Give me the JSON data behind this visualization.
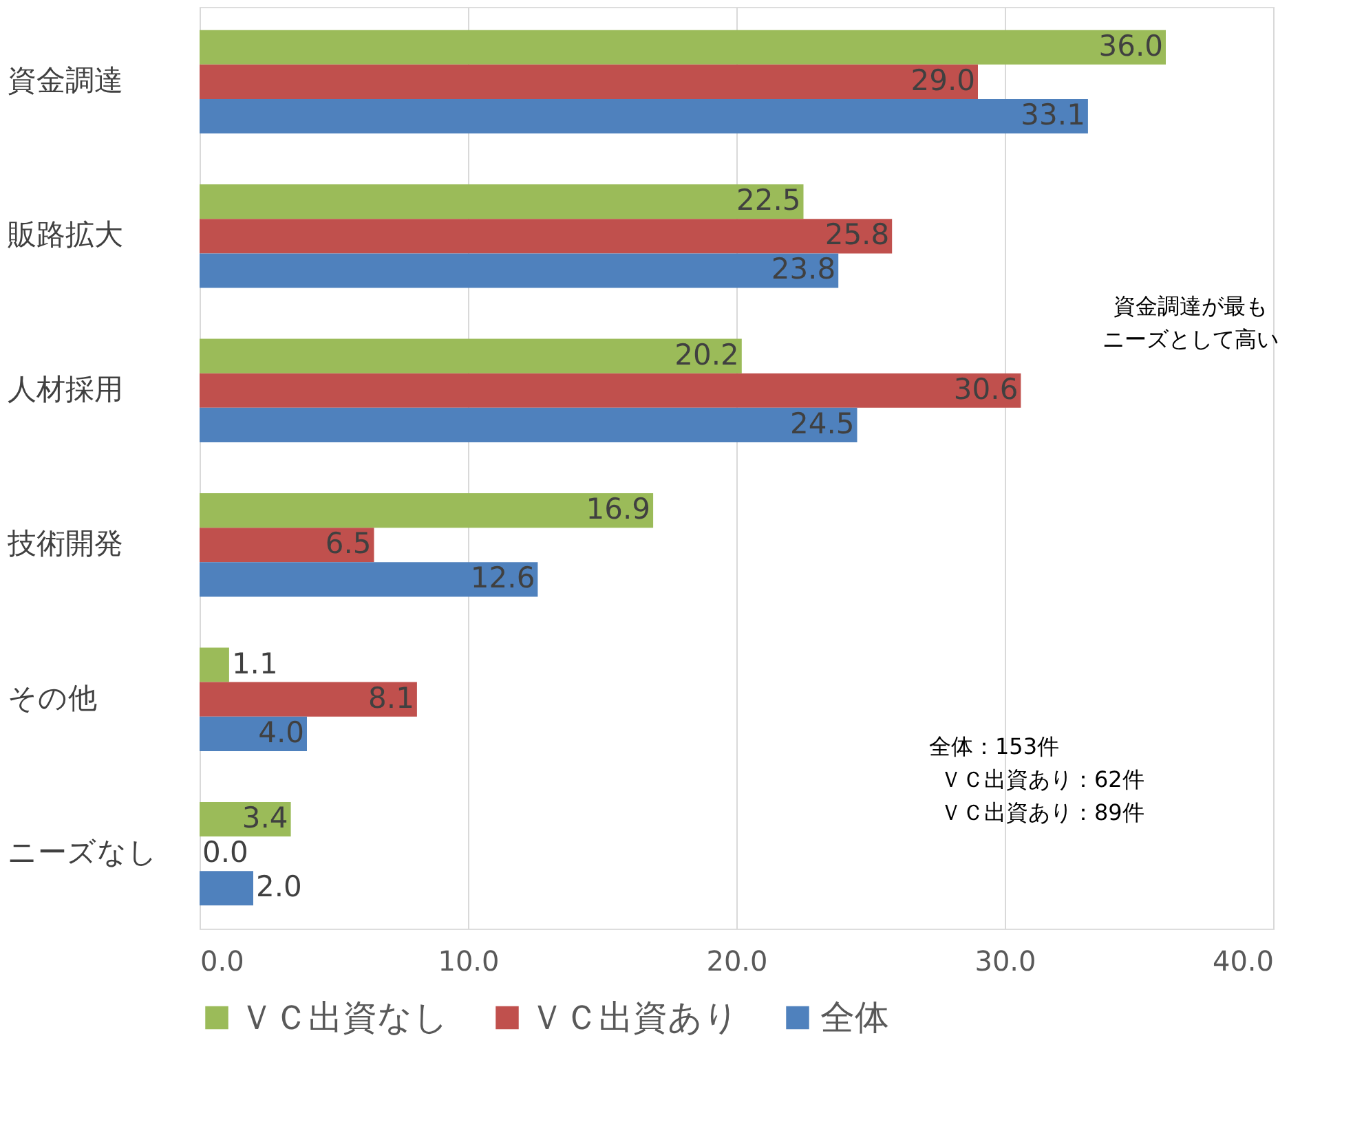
{
  "chart_data": {
    "type": "bar",
    "orientation": "horizontal",
    "categories": [
      "資金調達",
      "販路拡大",
      "人材採用",
      "技術開発",
      "その他",
      "ニーズなし"
    ],
    "series": [
      {
        "name": "ＶＣ出資なし",
        "color": "#9bbb59",
        "values": [
          36.0,
          22.5,
          20.2,
          16.9,
          1.1,
          3.4
        ],
        "value_labels": [
          "36.0",
          "22.5",
          "20.2",
          "16.9",
          "1.1",
          "3.4"
        ]
      },
      {
        "name": "ＶＣ出資あり",
        "color": "#c0504d",
        "values": [
          29.0,
          25.8,
          30.6,
          6.5,
          8.1,
          0.0
        ],
        "value_labels": [
          "29.0",
          "25.8",
          "30.6",
          "6.5",
          "8.1",
          "0.0"
        ]
      },
      {
        "name": "全体",
        "color": "#4f81bd",
        "values": [
          33.1,
          23.8,
          24.5,
          12.6,
          4.0,
          2.0
        ],
        "value_labels": [
          "33.1",
          "23.8",
          "24.5",
          "12.6",
          "4.0",
          "2.0"
        ]
      }
    ],
    "xlim": [
      0,
      40
    ],
    "xticks": [
      {
        "value": 0,
        "label": "0.0"
      },
      {
        "value": 10,
        "label": "10.0"
      },
      {
        "value": 20,
        "label": "20.0"
      },
      {
        "value": 30,
        "label": "30.0"
      },
      {
        "value": 40,
        "label": "40.0"
      }
    ],
    "grid": "x",
    "legend": "bottom",
    "annotations": [
      "資金調達が最もニーズとして高い",
      "全体：153件",
      "ＶＣ出資あり：62件",
      "ＶＣ出資あり：89件"
    ]
  }
}
